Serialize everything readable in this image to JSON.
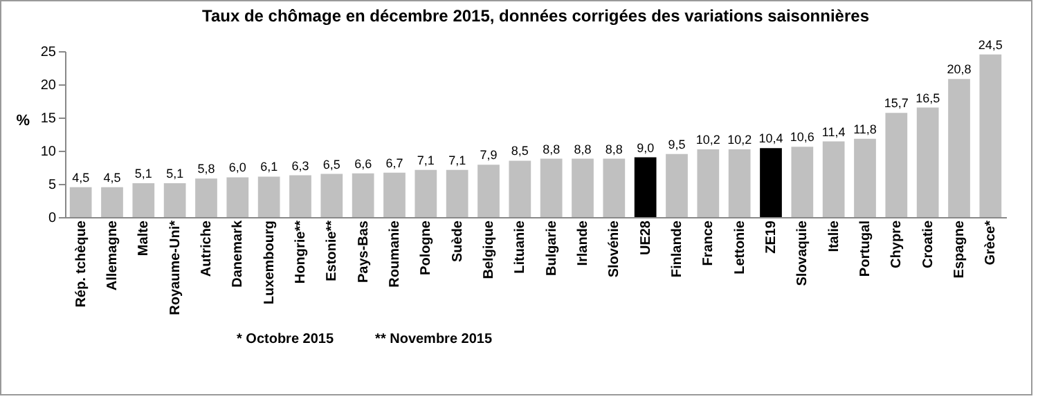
{
  "chart_data": {
    "type": "bar",
    "title": "Taux de chômage en décembre 2015, données corrigées des variations saisonnières",
    "ylabel": "%",
    "categories": [
      "Rép. tchèque",
      "Allemagne",
      "Malte",
      "Royaume-Uni*",
      "Autriche",
      "Danemark",
      "Luxembourg",
      "Hongrie**",
      "Estonie**",
      "Pays-Bas",
      "Roumanie",
      "Pologne",
      "Suède",
      "Belgique",
      "Lituanie",
      "Bulgarie",
      "Irlande",
      "Slovénie",
      "UE28",
      "Finlande",
      "France",
      "Lettonie",
      "ZE19",
      "Slovaquie",
      "Italie",
      "Portugal",
      "Chypre",
      "Croatie",
      "Espagne",
      "Grèce*"
    ],
    "values": [
      4.5,
      4.5,
      5.1,
      5.1,
      5.8,
      6.0,
      6.1,
      6.3,
      6.5,
      6.6,
      6.7,
      7.1,
      7.1,
      7.9,
      8.5,
      8.8,
      8.8,
      8.8,
      9.0,
      9.5,
      10.2,
      10.2,
      10.4,
      10.6,
      11.4,
      11.8,
      15.7,
      16.5,
      20.8,
      24.5
    ],
    "value_labels": [
      "4,5",
      "4,5",
      "5,1",
      "5,1",
      "5,8",
      "6,0",
      "6,1",
      "6,3",
      "6,5",
      "6,6",
      "6,7",
      "7,1",
      "7,1",
      "7,9",
      "8,5",
      "8,8",
      "8,8",
      "8,8",
      "9,0",
      "9,5",
      "10,2",
      "10,2",
      "10,4",
      "10,6",
      "11,4",
      "11,8",
      "15,7",
      "16,5",
      "20,8",
      "24,5"
    ],
    "colors": [
      "#c0c0c0",
      "#c0c0c0",
      "#c0c0c0",
      "#c0c0c0",
      "#c0c0c0",
      "#c0c0c0",
      "#c0c0c0",
      "#c0c0c0",
      "#c0c0c0",
      "#c0c0c0",
      "#c0c0c0",
      "#c0c0c0",
      "#c0c0c0",
      "#c0c0c0",
      "#c0c0c0",
      "#c0c0c0",
      "#c0c0c0",
      "#c0c0c0",
      "#000000",
      "#c0c0c0",
      "#c0c0c0",
      "#c0c0c0",
      "#000000",
      "#c0c0c0",
      "#c0c0c0",
      "#c0c0c0",
      "#c0c0c0",
      "#c0c0c0",
      "#c0c0c0",
      "#c0c0c0"
    ],
    "ylim": [
      0,
      25
    ],
    "yticks": [
      0,
      5,
      10,
      15,
      20,
      25
    ],
    "annotations": [
      "* Octobre 2015",
      "** Novembre 2015"
    ]
  }
}
